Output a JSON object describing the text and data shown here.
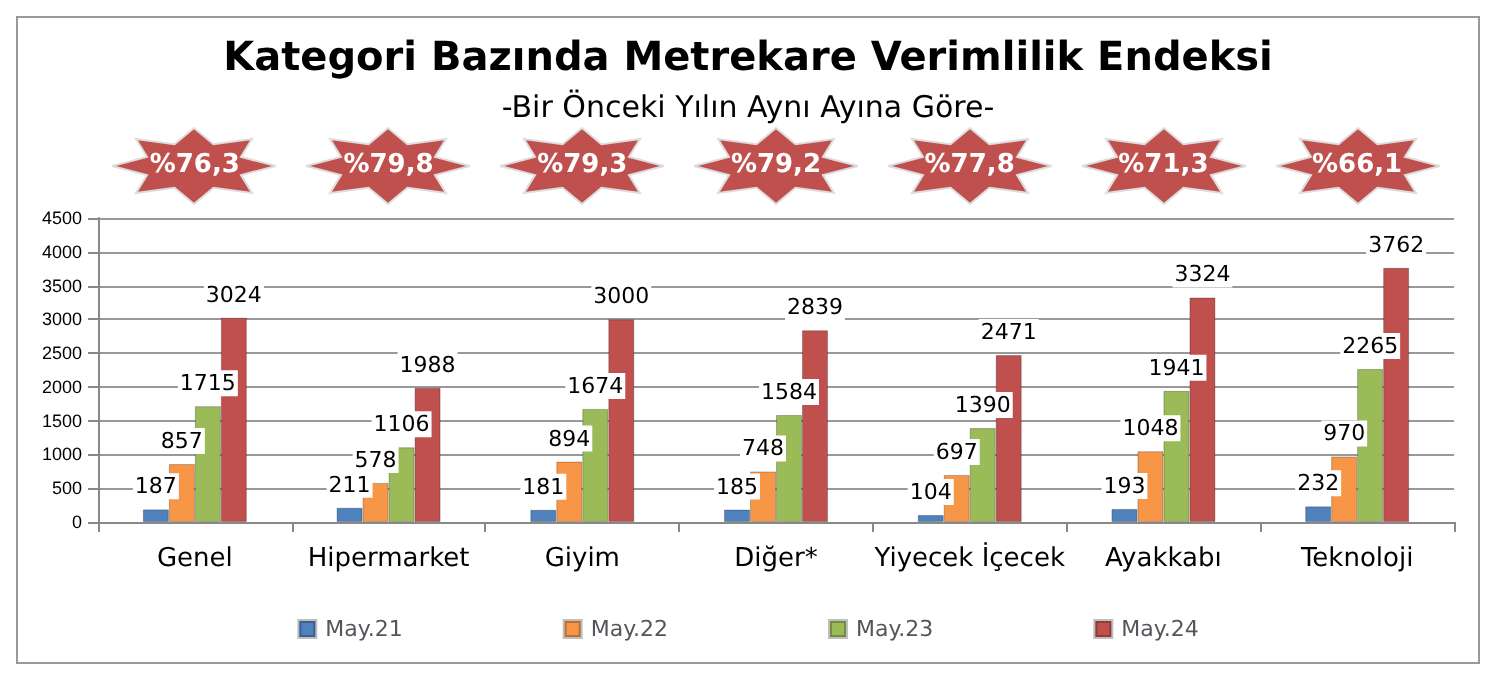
{
  "chart_data": {
    "type": "bar",
    "title": "Kategori Bazında Metrekare Verimlilik Endeksi",
    "subtitle": "-Bir Önceki Yılın Aynı Ayına Göre-",
    "categories": [
      "Genel",
      "Hipermarket",
      "Giyim",
      "Diğer*",
      "Yiyecek İçecek",
      "Ayakkabı",
      "Teknoloji"
    ],
    "series": [
      {
        "name": "May.21",
        "color": "#4f81bd",
        "values": [
          187,
          211,
          181,
          185,
          104,
          193,
          232
        ]
      },
      {
        "name": "May.22",
        "color": "#f79646",
        "values": [
          857,
          578,
          894,
          748,
          697,
          1048,
          970
        ]
      },
      {
        "name": "May.23",
        "color": "#9bbb59",
        "values": [
          1715,
          1106,
          1674,
          1584,
          1390,
          1941,
          2265
        ]
      },
      {
        "name": "May.24",
        "color": "#c0504d",
        "values": [
          3024,
          1988,
          3000,
          2839,
          2471,
          3324,
          3762
        ]
      }
    ],
    "ylim": [
      0,
      4500
    ],
    "yticks": [
      0,
      500,
      1000,
      1500,
      2000,
      2500,
      3000,
      3500,
      4000,
      4500
    ],
    "grid": "y",
    "legend": "bottom",
    "data_labels": true,
    "annotations": [
      "%76,3",
      "%79,8",
      "%79,3",
      "%79,2",
      "%77,8",
      "%71,3",
      "%66,1"
    ]
  }
}
